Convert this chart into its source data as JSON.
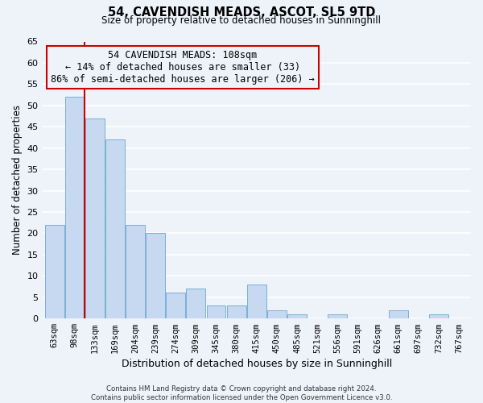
{
  "title1": "54, CAVENDISH MEADS, ASCOT, SL5 9TD",
  "title2": "Size of property relative to detached houses in Sunninghill",
  "xlabel": "Distribution of detached houses by size in Sunninghill",
  "ylabel": "Number of detached properties",
  "bin_labels": [
    "63sqm",
    "98sqm",
    "133sqm",
    "169sqm",
    "204sqm",
    "239sqm",
    "274sqm",
    "309sqm",
    "345sqm",
    "380sqm",
    "415sqm",
    "450sqm",
    "485sqm",
    "521sqm",
    "556sqm",
    "591sqm",
    "626sqm",
    "661sqm",
    "697sqm",
    "732sqm",
    "767sqm"
  ],
  "bar_heights": [
    22,
    52,
    47,
    42,
    22,
    20,
    6,
    7,
    3,
    3,
    8,
    2,
    1,
    0,
    1,
    0,
    0,
    2,
    0,
    1,
    0
  ],
  "bar_color": "#c6d9f0",
  "bar_edgecolor": "#7bafd4",
  "marker_line_color": "#cc0000",
  "annotation_text": "54 CAVENDISH MEADS: 108sqm\n← 14% of detached houses are smaller (33)\n86% of semi-detached houses are larger (206) →",
  "annotation_box_edgecolor": "#cc0000",
  "ylim": [
    0,
    65
  ],
  "yticks": [
    0,
    5,
    10,
    15,
    20,
    25,
    30,
    35,
    40,
    45,
    50,
    55,
    60,
    65
  ],
  "footer_text": "Contains HM Land Registry data © Crown copyright and database right 2024.\nContains public sector information licensed under the Open Government Licence v3.0.",
  "bg_color": "#eef3fa",
  "grid_color": "#ffffff"
}
